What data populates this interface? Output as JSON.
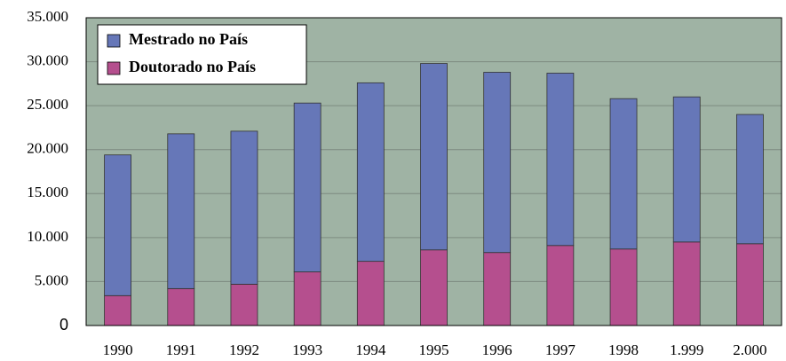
{
  "chart_data": {
    "type": "stacked_bar",
    "categories": [
      "1990",
      "1991",
      "1992",
      "1993",
      "1994",
      "1995",
      "1996",
      "1997",
      "1998",
      "1.999",
      "2.000"
    ],
    "series": [
      {
        "name": "Doutorado no País",
        "color": "#b54f8e",
        "values": [
          3400,
          4200,
          4700,
          6100,
          7300,
          8600,
          8300,
          9100,
          8700,
          9500,
          9300
        ]
      },
      {
        "name": "Mestrado no País",
        "color": "#6677b8",
        "values": [
          16000,
          17600,
          17400,
          19200,
          20300,
          21200,
          20500,
          19600,
          17100,
          16500,
          14700
        ]
      }
    ],
    "ylim": [
      0,
      35000
    ],
    "yticks": [
      0,
      {
        "value": 5000,
        "label": "5.000"
      },
      {
        "value": 10000,
        "label": "10.000"
      },
      {
        "value": 15000,
        "label": "15.000"
      },
      {
        "value": 20000,
        "label": "20.000"
      },
      {
        "value": 25000,
        "label": "25.000"
      },
      {
        "value": 30000,
        "label": "30.000"
      },
      {
        "value": 35000,
        "label": "35.000"
      }
    ],
    "grid": true,
    "legend": "upper-left",
    "background": "#9fb3a4"
  }
}
